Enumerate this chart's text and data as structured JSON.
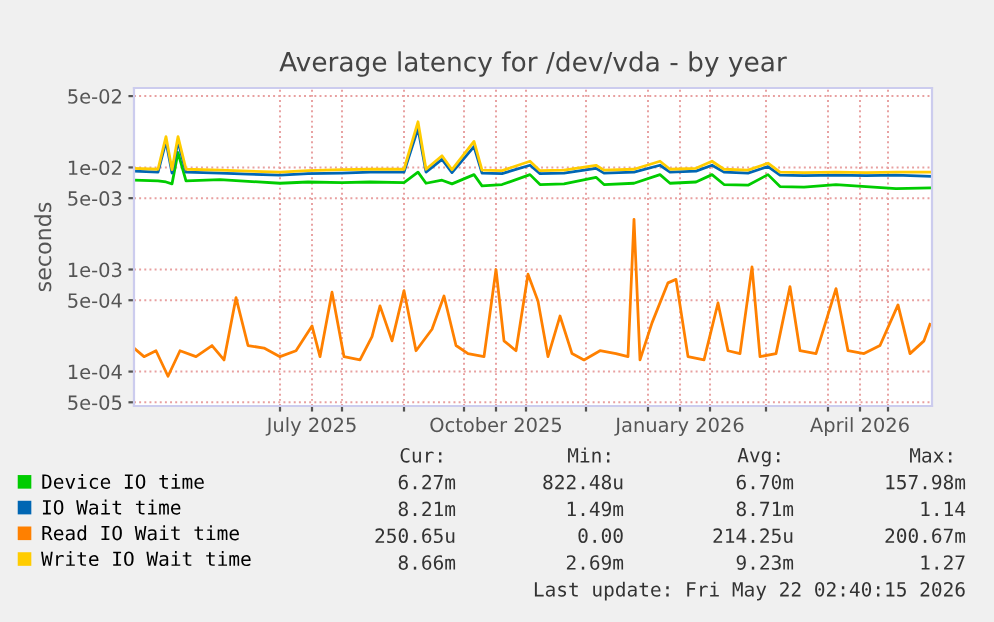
{
  "chart_data": {
    "type": "line",
    "title": "Average latency for /dev/vda - by year",
    "ylabel": "seconds",
    "log": "y",
    "x": [
      "2025-04-19",
      "2025-05-01",
      "2025-05-05",
      "2025-05-08",
      "2025-05-11",
      "2025-05-15",
      "2025-06-01",
      "2025-06-15",
      "2025-07-01",
      "2025-07-15",
      "2025-08-01",
      "2025-08-15",
      "2025-09-01",
      "2025-09-08",
      "2025-09-12",
      "2025-09-20",
      "2025-09-25",
      "2025-10-06",
      "2025-10-10",
      "2025-10-20",
      "2025-11-03",
      "2025-11-08",
      "2025-11-20",
      "2025-12-06",
      "2025-12-10",
      "2025-12-25",
      "2026-01-07",
      "2026-01-12",
      "2026-01-25",
      "2026-02-02",
      "2026-02-08",
      "2026-02-20",
      "2026-03-02",
      "2026-03-08",
      "2026-03-20",
      "2026-04-05",
      "2026-04-20",
      "2026-05-05",
      "2026-05-22"
    ],
    "series": [
      {
        "name": "Device IO time",
        "color": "#00cc00",
        "values": [
          0.0075,
          0.0074,
          0.0072,
          0.0069,
          0.014,
          0.0074,
          0.0076,
          0.0073,
          0.007,
          0.0072,
          0.0071,
          0.0072,
          0.0071,
          0.009,
          0.007,
          0.0075,
          0.0069,
          0.0085,
          0.0066,
          0.0068,
          0.0085,
          0.0068,
          0.0069,
          0.008,
          0.0068,
          0.007,
          0.0085,
          0.007,
          0.0072,
          0.0085,
          0.0068,
          0.0067,
          0.0085,
          0.0065,
          0.0064,
          0.0068,
          0.0065,
          0.0062,
          0.0063
        ]
      },
      {
        "name": "IO Wait time",
        "color": "#0066b3",
        "values": [
          0.0092,
          0.009,
          0.018,
          0.0088,
          0.018,
          0.009,
          0.0088,
          0.0086,
          0.0084,
          0.0087,
          0.0088,
          0.009,
          0.009,
          0.024,
          0.009,
          0.012,
          0.0089,
          0.016,
          0.0088,
          0.0087,
          0.0105,
          0.0087,
          0.0088,
          0.0098,
          0.0088,
          0.009,
          0.0105,
          0.009,
          0.0092,
          0.0105,
          0.009,
          0.0088,
          0.0102,
          0.0084,
          0.0083,
          0.0084,
          0.0083,
          0.0084,
          0.0082
        ]
      },
      {
        "name": "Read IO Wait time",
        "color": "#ff8000",
        "x": [
          "2025-04-19",
          "2025-04-24",
          "2025-04-30",
          "2025-05-06",
          "2025-05-12",
          "2025-05-20",
          "2025-05-28",
          "2025-06-03",
          "2025-06-09",
          "2025-06-15",
          "2025-06-23",
          "2025-07-01",
          "2025-07-09",
          "2025-07-17",
          "2025-07-21",
          "2025-07-27",
          "2025-08-02",
          "2025-08-10",
          "2025-08-16",
          "2025-08-20",
          "2025-08-26",
          "2025-09-01",
          "2025-09-07",
          "2025-09-15",
          "2025-09-21",
          "2025-09-27",
          "2025-10-03",
          "2025-10-11",
          "2025-10-17",
          "2025-10-21",
          "2025-10-27",
          "2025-11-02",
          "2025-11-07",
          "2025-11-12",
          "2025-11-18",
          "2025-11-24",
          "2025-11-30",
          "2025-12-08",
          "2025-12-16",
          "2025-12-22",
          "2025-12-25",
          "2025-12-28",
          "2026-01-03",
          "2026-01-11",
          "2026-01-15",
          "2026-01-21",
          "2026-01-29",
          "2026-02-05",
          "2026-02-10",
          "2026-02-16",
          "2026-02-22",
          "2026-02-26",
          "2026-03-06",
          "2026-03-13",
          "2026-03-18",
          "2026-03-26",
          "2026-04-05",
          "2026-04-11",
          "2026-04-19",
          "2026-04-27",
          "2026-05-06",
          "2026-05-12",
          "2026-05-19",
          "2026-05-22"
        ],
        "values": [
          0.00017,
          0.00014,
          0.00016,
          9e-05,
          0.00016,
          0.00014,
          0.00018,
          0.00013,
          0.00053,
          0.00018,
          0.00017,
          0.00014,
          0.00016,
          0.00028,
          0.00014,
          0.0006,
          0.00014,
          0.00013,
          0.00022,
          0.00044,
          0.0002,
          0.00062,
          0.00016,
          0.00026,
          0.00055,
          0.00018,
          0.00015,
          0.00014,
          0.001,
          0.0002,
          0.00016,
          0.0009,
          0.00049,
          0.00014,
          0.00035,
          0.00015,
          0.00013,
          0.00016,
          0.00015,
          0.00014,
          0.0031,
          0.00013,
          0.0003,
          0.00074,
          0.0008,
          0.00014,
          0.00013,
          0.00047,
          0.00016,
          0.00015,
          0.00106,
          0.00014,
          0.00015,
          0.00068,
          0.00016,
          0.00015,
          0.00065,
          0.00016,
          0.00015,
          0.00018,
          0.00045,
          0.00015,
          0.0002,
          0.00029
        ]
      },
      {
        "name": "Write IO Wait time",
        "color": "#ffcc00",
        "values": [
          0.0098,
          0.0096,
          0.02,
          0.0095,
          0.02,
          0.0096,
          0.0094,
          0.0092,
          0.009,
          0.0093,
          0.0095,
          0.0096,
          0.0096,
          0.028,
          0.0096,
          0.013,
          0.0095,
          0.018,
          0.0094,
          0.0093,
          0.0115,
          0.0093,
          0.0094,
          0.0105,
          0.0094,
          0.0096,
          0.0115,
          0.0096,
          0.0098,
          0.0115,
          0.0096,
          0.0094,
          0.011,
          0.009,
          0.0089,
          0.009,
          0.0089,
          0.009,
          0.009
        ]
      }
    ],
    "xlim": [
      "2025-04-19",
      "2026-05-23"
    ],
    "xticks": [
      {
        "value": "2025-07-01",
        "label": null
      },
      {
        "value": "2025-07-17",
        "label": "July 2025"
      },
      {
        "value": "2025-08-01",
        "label": null
      },
      {
        "value": "2025-09-01",
        "label": null
      },
      {
        "value": "2025-10-01",
        "label": null
      },
      {
        "value": "2025-10-17",
        "label": "October 2025"
      },
      {
        "value": "2025-11-01",
        "label": null
      },
      {
        "value": "2025-12-01",
        "label": null
      },
      {
        "value": "2026-01-01",
        "label": null
      },
      {
        "value": "2026-01-17",
        "label": "January 2026"
      },
      {
        "value": "2026-02-01",
        "label": null
      },
      {
        "value": "2026-03-01",
        "label": null
      },
      {
        "value": "2026-04-01",
        "label": null
      },
      {
        "value": "2026-04-17",
        "label": "April 2026"
      },
      {
        "value": "2026-05-01",
        "label": null
      }
    ],
    "ylim": [
      4.6e-05,
      0.06
    ],
    "yticks": [
      {
        "value": 5e-05,
        "label": "5e-05"
      },
      {
        "value": 0.0001,
        "label": "1e-04"
      },
      {
        "value": 0.0005,
        "label": "5e-04"
      },
      {
        "value": 0.001,
        "label": "1e-03"
      },
      {
        "value": 0.005,
        "label": "5e-03"
      },
      {
        "value": 0.01,
        "label": "1e-02"
      },
      {
        "value": 0.05,
        "label": "5e-02"
      }
    ],
    "grid": true,
    "legend": "bottom left",
    "line_style": "solid",
    "marker": "none",
    "annotations": [
      "Cur:",
      "Min:",
      "Avg:",
      "Max:",
      "6.27m",
      "822.48u",
      "6.70m",
      "157.98m",
      "8.21m",
      "1.49m",
      "8.71m",
      "1.14",
      "250.65u",
      "0.00",
      "214.25u",
      "200.67m",
      "8.66m",
      "2.69m",
      "9.23m",
      "1.27",
      "Last update: Fri May 22 02:40:15 2026"
    ]
  }
}
